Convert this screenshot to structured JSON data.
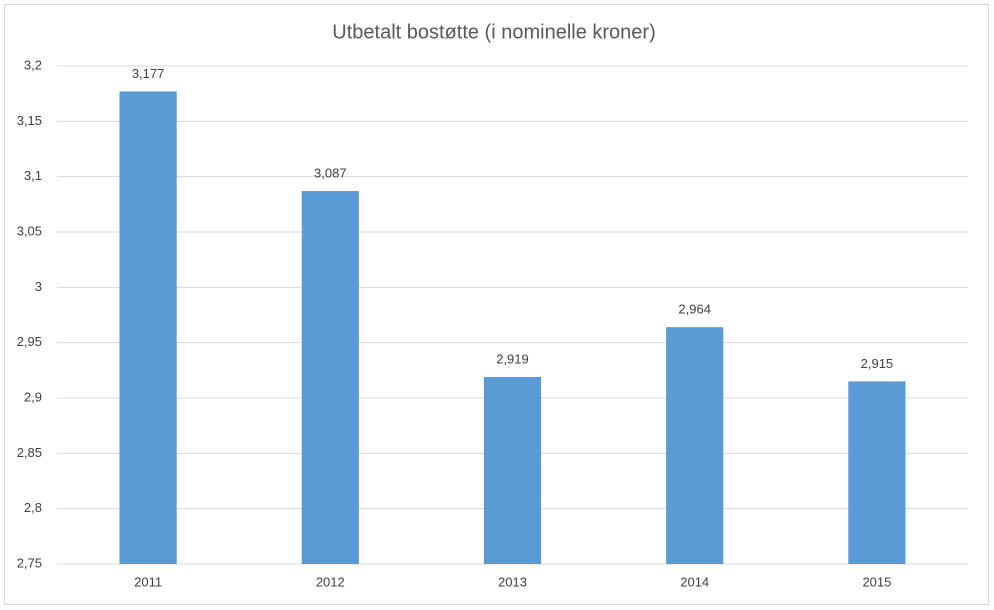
{
  "chart_data": {
    "type": "bar",
    "title": "Utbetalt bostøtte (i nominelle kroner)",
    "categories": [
      "2011",
      "2012",
      "2013",
      "2014",
      "2015"
    ],
    "values": [
      3.177,
      3.087,
      2.919,
      2.964,
      2.915
    ],
    "value_labels": [
      "3,177",
      "3,087",
      "2,919",
      "2,964",
      "2,915"
    ],
    "color": "#5b9bd5",
    "ylim": [
      2.75,
      3.2
    ],
    "yticks": [
      {
        "value": 2.75,
        "label": "2,75"
      },
      {
        "value": 2.8,
        "label": "2,8"
      },
      {
        "value": 2.85,
        "label": "2,85"
      },
      {
        "value": 2.9,
        "label": "2,9"
      },
      {
        "value": 2.95,
        "label": "2,95"
      },
      {
        "value": 3,
        "label": "3"
      },
      {
        "value": 3.05,
        "label": "3,05"
      },
      {
        "value": 3.1,
        "label": "3,1"
      },
      {
        "value": 3.15,
        "label": "3,15"
      },
      {
        "value": 3.2,
        "label": "3,2"
      }
    ],
    "grid": true
  }
}
